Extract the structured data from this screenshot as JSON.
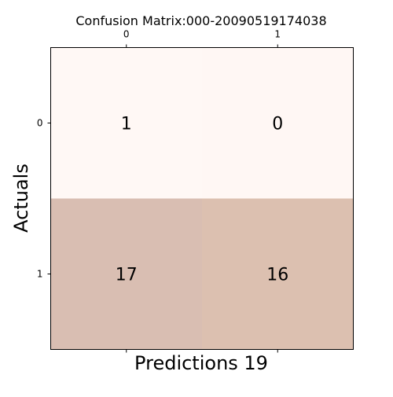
{
  "chart_data": {
    "type": "heatmap",
    "title": "Confusion Matrix:000-20090519174038",
    "xlabel": "Predictions 19",
    "ylabel": "Actuals",
    "x_ticks": [
      "0",
      "1"
    ],
    "y_ticks": [
      "0",
      "1"
    ],
    "x_ticks_position": "top",
    "grid": false,
    "values": [
      [
        1,
        0
      ],
      [
        17,
        16
      ]
    ],
    "cell_colors": [
      [
        "#fff8f5",
        "#fff7f4"
      ],
      [
        "#d9beb2",
        "#dcc0b0"
      ]
    ]
  }
}
